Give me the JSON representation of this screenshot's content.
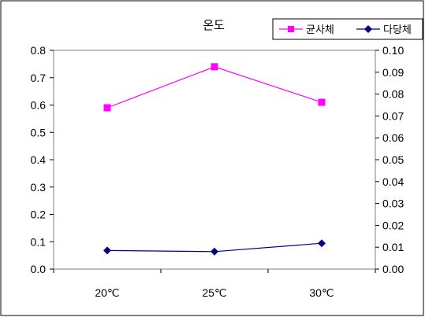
{
  "chart_data": {
    "type": "line",
    "title": "온도",
    "categories": [
      "20℃",
      "25℃",
      "30℃"
    ],
    "y_left": {
      "ticks": [
        "0.0",
        "0.1",
        "0.2",
        "0.3",
        "0.4",
        "0.5",
        "0.6",
        "0.7",
        "0.8"
      ],
      "range": [
        0,
        0.8
      ]
    },
    "y_right": {
      "ticks": [
        "0.00",
        "0.01",
        "0.02",
        "0.03",
        "0.04",
        "0.05",
        "0.06",
        "0.07",
        "0.08",
        "0.09",
        "0.10"
      ],
      "range": [
        0,
        0.1
      ]
    },
    "series": [
      {
        "name": "균사체",
        "axis": "left",
        "values": [
          0.59,
          0.74,
          0.61
        ],
        "color": "#ff00ff",
        "marker": "square"
      },
      {
        "name": "다당체",
        "axis": "right",
        "values": [
          0.0085,
          0.008,
          0.0118
        ],
        "color": "#000080",
        "marker": "diamond"
      }
    ],
    "legend_position": "top-right",
    "grid": false
  }
}
